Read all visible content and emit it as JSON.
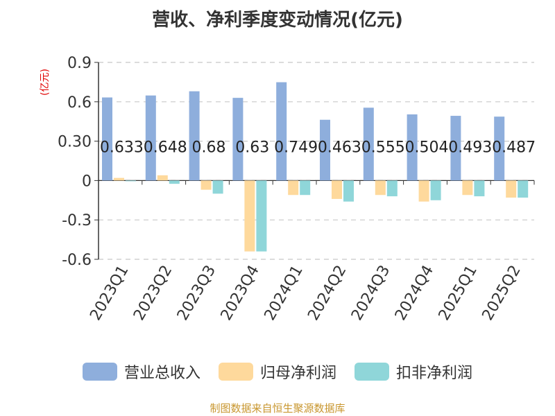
{
  "chart_data": {
    "type": "bar",
    "title": "营收、净利季度变动情况(亿元)",
    "ylabel": "(亿元)",
    "categories": [
      "2023Q1",
      "2023Q2",
      "2023Q3",
      "2023Q4",
      "2024Q1",
      "2024Q2",
      "2024Q3",
      "2024Q4",
      "2025Q1",
      "2025Q2"
    ],
    "series": [
      {
        "name": "营业总收入",
        "color": "#8eaedc",
        "values": [
          0.633,
          0.648,
          0.68,
          0.63,
          0.749,
          0.463,
          0.555,
          0.504,
          0.493,
          0.487
        ],
        "labels": [
          "0.633",
          "0.648",
          "0.68",
          "0.63",
          "0.749",
          "0.463",
          "0.555",
          "0.504",
          "0.493",
          "0.487"
        ]
      },
      {
        "name": "归母净利润",
        "color": "#fed99c",
        "values": [
          0.02,
          0.04,
          -0.07,
          -0.54,
          -0.11,
          -0.14,
          -0.11,
          -0.16,
          -0.11,
          -0.13
        ]
      },
      {
        "name": "扣非净利润",
        "color": "#8fd6d9",
        "values": [
          -0.005,
          -0.025,
          -0.1,
          -0.54,
          -0.11,
          -0.16,
          -0.12,
          -0.15,
          -0.12,
          -0.13
        ]
      }
    ],
    "ylim": [
      -0.6,
      0.9
    ],
    "yticks": [
      "0.9",
      "0.6",
      "0.30",
      "0",
      "-0.3",
      "-0.6"
    ],
    "grid": true,
    "legend_position": "bottom"
  },
  "source_text": "制图数据来自恒生聚源数据库"
}
